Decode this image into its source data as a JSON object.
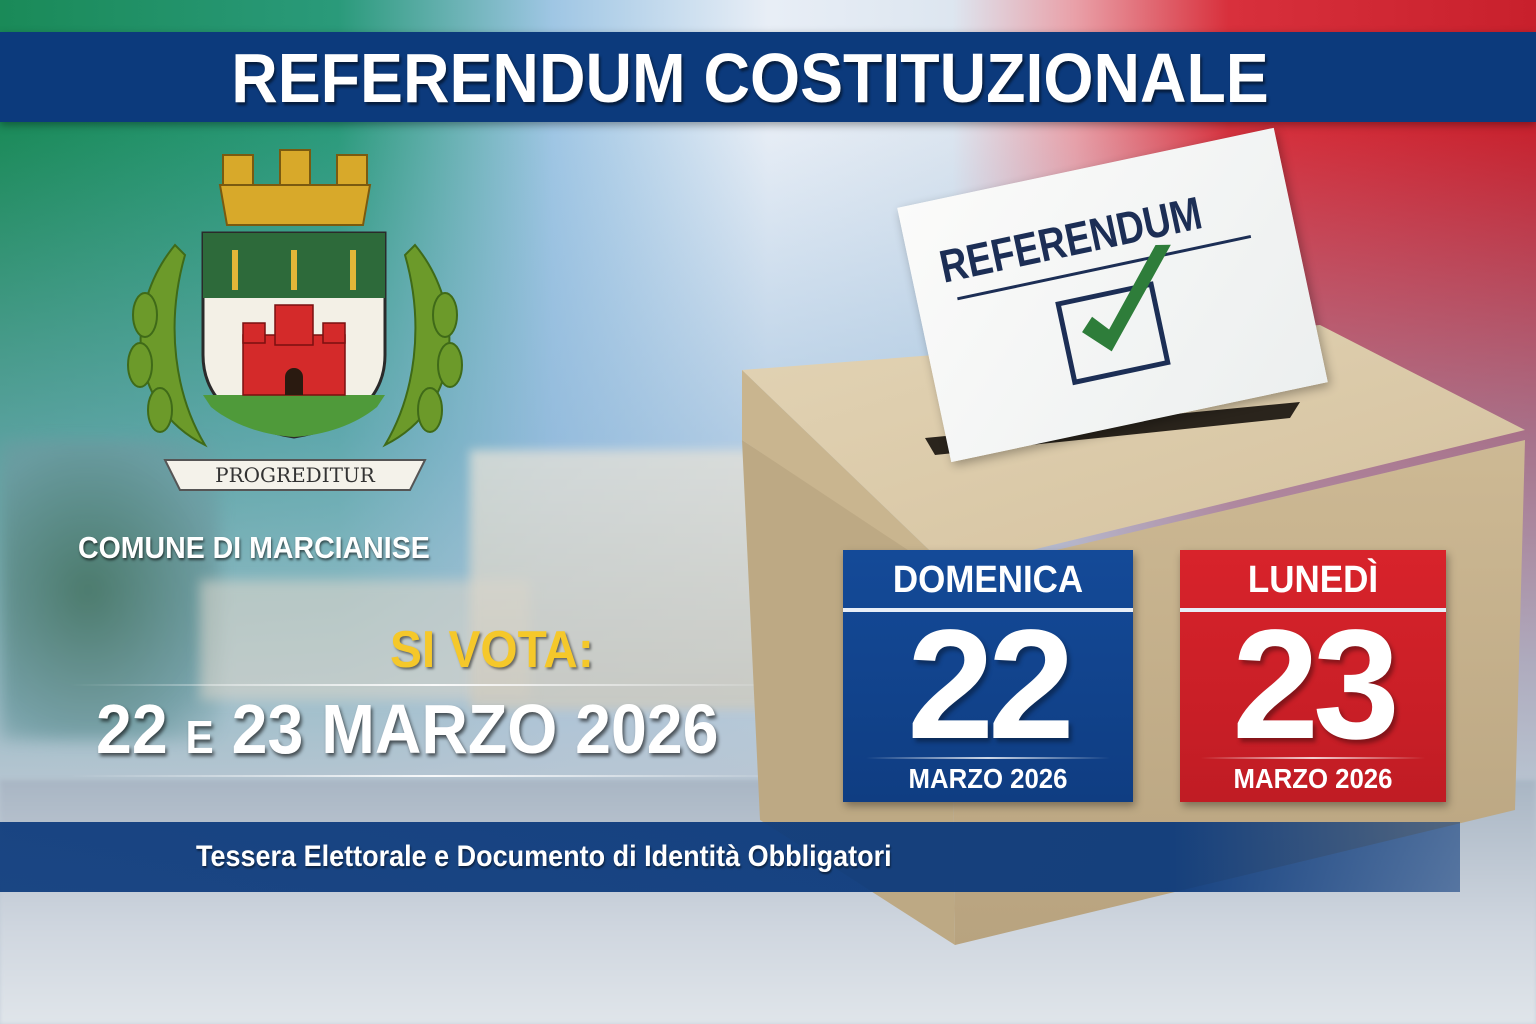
{
  "header": {
    "title": "REFERENDUM COSTITUZIONALE"
  },
  "crest": {
    "motto": "PROGREDITUR",
    "municipality": "COMUNE DI MARCIANISE"
  },
  "vote": {
    "label": "SI VOTA:",
    "date_part1": "22",
    "date_conj": "E",
    "date_part2": "23 MARZO 2026"
  },
  "ballot": {
    "title": "REFERENDUM",
    "icon": "checkmark-icon"
  },
  "days": [
    {
      "weekday": "DOMENICA",
      "number": "22",
      "month": "MARZO 2026",
      "color": "#134693"
    },
    {
      "weekday": "LUNEDÌ",
      "number": "23",
      "month": "MARZO 2026",
      "color": "#cc2029"
    }
  ],
  "footer": {
    "notice": "Tessera Elettorale e Documento di Identità Obbligatori"
  },
  "colors": {
    "navy": "#0c3a7c",
    "yellow": "#f5c82a",
    "flag_green": "#1a8a58",
    "flag_red": "#c8202c"
  }
}
